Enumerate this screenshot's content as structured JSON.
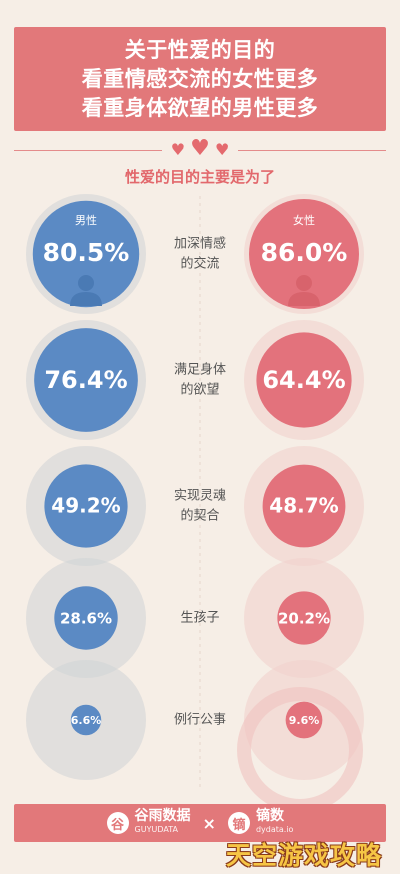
{
  "header": {
    "lines": [
      "关于性爱的目的",
      "看重情感交流的女性更多",
      "看重身体欲望的男性更多"
    ]
  },
  "colors": {
    "male": "#5b8ac4",
    "female": "#e3727c",
    "male_halo": "#cfd3d6",
    "female_halo": "#f2d2cd",
    "label": "#555555",
    "background": "#f6eee6"
  },
  "chart_data": {
    "type": "bubble",
    "title": "性爱的目的主要是为了",
    "series": [
      {
        "name": "男性",
        "values": [
          80.5,
          76.4,
          49.2,
          28.6,
          6.6
        ]
      },
      {
        "name": "女性",
        "values": [
          86.0,
          64.4,
          48.7,
          20.2,
          9.6
        ]
      }
    ],
    "categories": [
      "加深情感的交流",
      "满足身体的欲望",
      "实现灵魂的契合",
      "生孩子",
      "例行公事"
    ],
    "category_lines": [
      [
        "加深情感",
        "的交流"
      ],
      [
        "满足身体",
        "的欲望"
      ],
      [
        "实现灵魂",
        "的契合"
      ],
      [
        "生孩子"
      ],
      [
        "例行公事"
      ]
    ],
    "value_labels": {
      "男性": [
        "80.5%",
        "76.4%",
        "49.2%",
        "28.6%",
        "6.6%"
      ],
      "女性": [
        "86.0%",
        "64.4%",
        "48.7%",
        "20.2%",
        "9.6%"
      ]
    }
  },
  "footer": {
    "brand1_name": "谷雨数据",
    "brand1_sub": "GUYUDATA",
    "separator": "×",
    "brand2_name": "镝数",
    "brand2_sub": "dydata.io"
  },
  "watermark": "天空游戏攻略"
}
